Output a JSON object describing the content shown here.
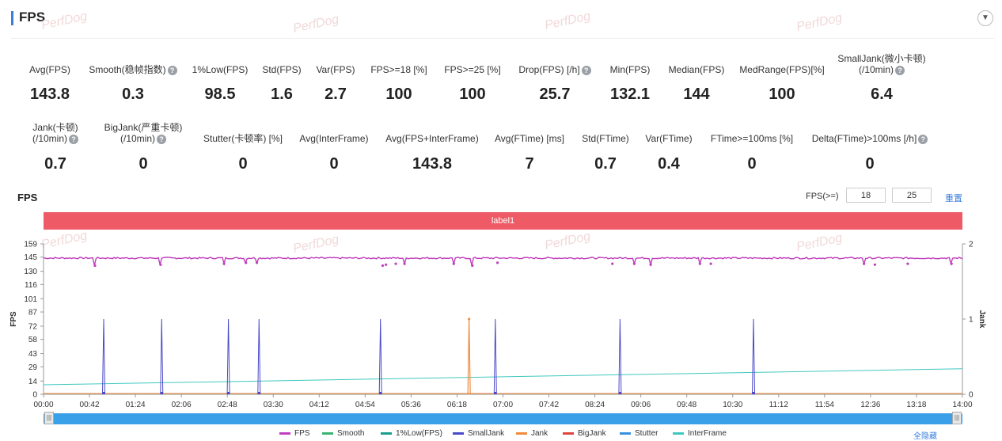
{
  "header": {
    "title": "FPS",
    "watermark": "PerfDog"
  },
  "metrics_row1": [
    {
      "label": "Avg(FPS)",
      "value": "143.8"
    },
    {
      "label": "Smooth(稳帧指数)",
      "value": "0.3",
      "help": true
    },
    {
      "label": "1%Low(FPS)",
      "value": "98.5"
    },
    {
      "label": "Std(FPS)",
      "value": "1.6"
    },
    {
      "label": "Var(FPS)",
      "value": "2.7"
    },
    {
      "label": "FPS>=18 [%]",
      "value": "100"
    },
    {
      "label": "FPS>=25 [%]",
      "value": "100"
    },
    {
      "label": "Drop(FPS) [/h]",
      "value": "25.7",
      "help": true
    },
    {
      "label": "Min(FPS)",
      "value": "132.1"
    },
    {
      "label": "Median(FPS)",
      "value": "144"
    },
    {
      "label": "MedRange(FPS)[%]",
      "value": "100"
    },
    {
      "label": "SmallJank(微小卡顿)",
      "label2": "(/10min)",
      "value": "6.4",
      "help": true
    }
  ],
  "metrics_row2": [
    {
      "label": "Jank(卡顿)",
      "label2": "(/10min)",
      "value": "0.7",
      "help": true
    },
    {
      "label": "BigJank(严重卡顿)",
      "label2": "(/10min)",
      "value": "0",
      "help": true
    },
    {
      "label": "Stutter(卡顿率) [%]",
      "value": "0"
    },
    {
      "label": "Avg(InterFrame)",
      "value": "0"
    },
    {
      "label": "Avg(FPS+InterFrame)",
      "value": "143.8"
    },
    {
      "label": "Avg(FTime) [ms]",
      "value": "7"
    },
    {
      "label": "Std(FTime)",
      "value": "0.7"
    },
    {
      "label": "Var(FTime)",
      "value": "0.4"
    },
    {
      "label": "FTime>=100ms [%]",
      "value": "0"
    },
    {
      "label": "Delta(FTime)>100ms [/h]",
      "value": "0",
      "help": true
    }
  ],
  "chart_section": {
    "title": "FPS",
    "threshold_label": "FPS(>=)",
    "threshold_1": "18",
    "threshold_2": "25",
    "reset_label": "重置",
    "segment_label": "label1",
    "show_all_label": "全隐藏"
  },
  "chart_data": {
    "type": "line",
    "ylabel": "FPS",
    "y2label": "Jank",
    "y_ticks": [
      0,
      14,
      29,
      43,
      58,
      72,
      87,
      101,
      116,
      130,
      145,
      159
    ],
    "y2_ticks": [
      0,
      1,
      2
    ],
    "ylim": [
      0,
      159
    ],
    "y2lim": [
      0,
      2
    ],
    "x_tick_labels": [
      "00:00",
      "00:42",
      "01:24",
      "02:06",
      "02:48",
      "03:30",
      "04:12",
      "04:54",
      "05:36",
      "06:18",
      "07:00",
      "07:42",
      "08:24",
      "09:06",
      "09:48",
      "10:30",
      "11:12",
      "11:54",
      "12:36",
      "13:18",
      "14:00"
    ],
    "x_range_seconds": [
      0,
      840
    ],
    "series": [
      {
        "name": "FPS",
        "color": "#c03fbd",
        "baseline": 144,
        "dips": [
          [
            47,
            136
          ],
          [
            107,
            137
          ],
          [
            165,
            138
          ],
          [
            185,
            139
          ],
          [
            195,
            139
          ],
          [
            310,
            136
          ],
          [
            313,
            137
          ],
          [
            322,
            138
          ],
          [
            330,
            138
          ],
          [
            375,
            138
          ],
          [
            392,
            136
          ],
          [
            415,
            139
          ],
          [
            520,
            138
          ],
          [
            540,
            138
          ],
          [
            555,
            137
          ],
          [
            600,
            138
          ],
          [
            610,
            138
          ],
          [
            750,
            138
          ],
          [
            760,
            137
          ],
          [
            790,
            138
          ],
          [
            830,
            138
          ]
        ]
      },
      {
        "name": "Smooth",
        "color": "#3cb371"
      },
      {
        "name": "1%Low(FPS)",
        "color": "#1a9e8f"
      },
      {
        "name": "SmallJank",
        "color": "#4a4ac8",
        "spikes_seconds": [
          55,
          108,
          169,
          197,
          308,
          413,
          527,
          649
        ]
      },
      {
        "name": "Jank",
        "color": "#f08a3c",
        "spikes_seconds": [
          389
        ]
      },
      {
        "name": "BigJank",
        "color": "#e0443c"
      },
      {
        "name": "Stutter",
        "color": "#3a8ee0"
      },
      {
        "name": "InterFrame",
        "color": "#40c8c0",
        "start": 10,
        "end": 27
      }
    ]
  }
}
